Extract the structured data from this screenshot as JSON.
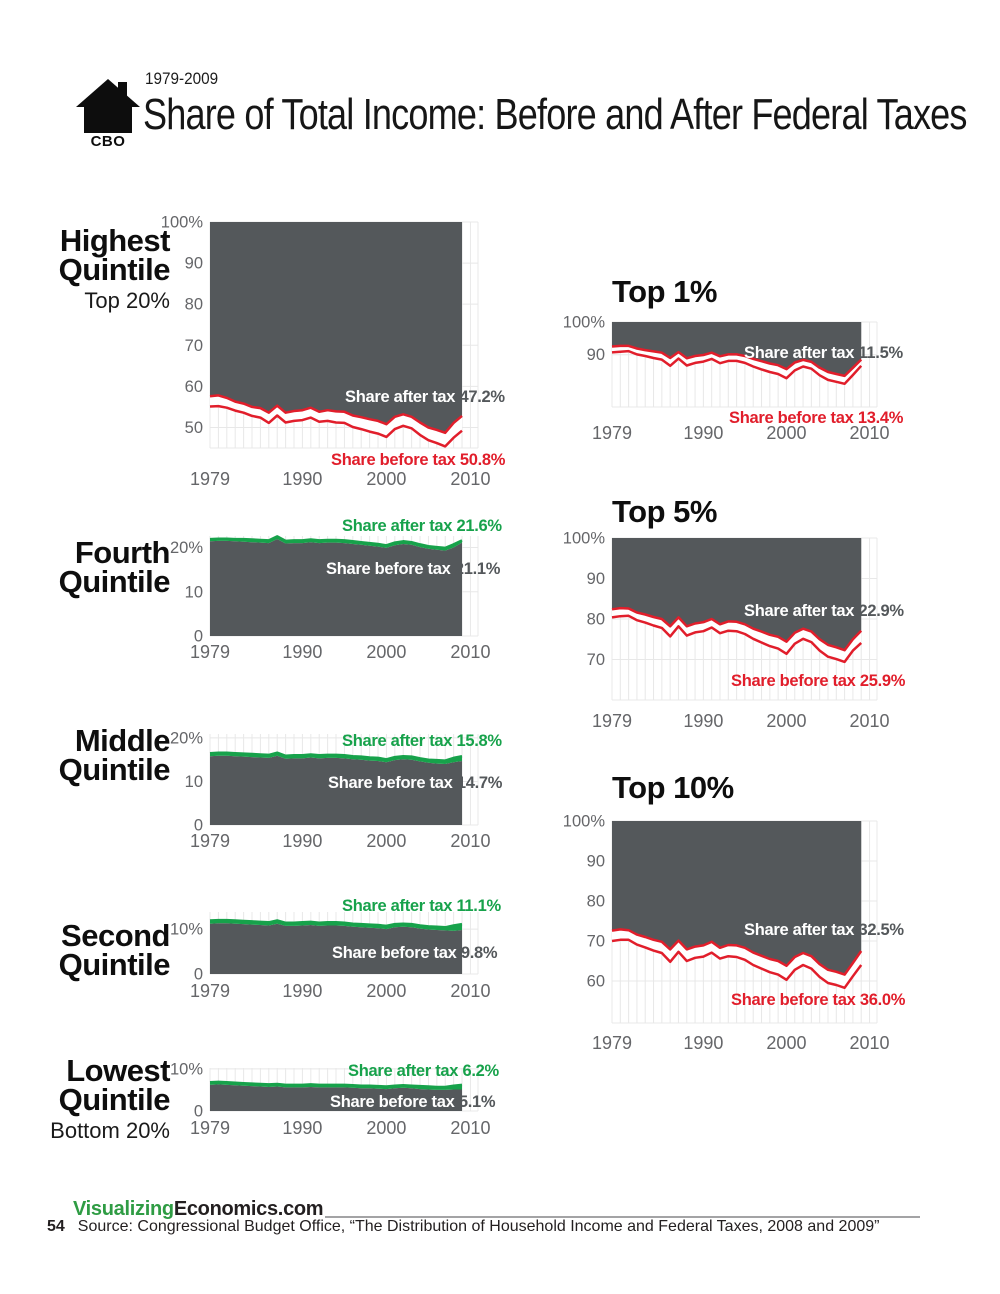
{
  "header": {
    "logo_text": "CBO",
    "period": "1979-2009",
    "title": "Share of Total Income: Before and After Federal Taxes"
  },
  "footer": {
    "brand_green": "Visualizing",
    "brand_black": "Economics.com",
    "page_number": "54",
    "source": "Source: Congressional Budget Office, “The Distribution of Household Income and Federal Taxes, 2008 and 2009”"
  },
  "colors": {
    "area_gray": "#54585b",
    "line_red": "#e11e2b",
    "line_green": "#17a24b",
    "axis_text": "#656669",
    "grid": "#e8e8e8",
    "brand_green": "#2f9c44"
  },
  "chart_data": {
    "type": "area",
    "x_years": [
      1979,
      1980,
      1981,
      1982,
      1983,
      1984,
      1985,
      1986,
      1987,
      1988,
      1989,
      1990,
      1991,
      1992,
      1993,
      1994,
      1995,
      1996,
      1997,
      1998,
      1999,
      2000,
      2001,
      2002,
      2003,
      2004,
      2005,
      2006,
      2007,
      2008,
      2009
    ],
    "x_ticks": [
      {
        "v": 1979,
        "label": "1979"
      },
      {
        "v": 1990,
        "label": "1990"
      },
      {
        "v": 2000,
        "label": "2000"
      },
      {
        "v": 2010,
        "label": "2010"
      }
    ],
    "charts": [
      {
        "id": "highest",
        "panel_title": {
          "line1": "Highest",
          "line2": "Quintile",
          "subtitle": "Top 20%"
        },
        "style": "from-top",
        "annotations": {
          "after_label": "Share after tax",
          "after_value": "47.2%",
          "before_label": "Share before tax",
          "before_value": "50.8%"
        },
        "y_ticks": [
          {
            "v": 100,
            "label": "100%"
          },
          {
            "v": 90,
            "label": "90"
          },
          {
            "v": 80,
            "label": "80"
          },
          {
            "v": 70,
            "label": "70"
          },
          {
            "v": 60,
            "label": "60"
          },
          {
            "v": 50,
            "label": "50"
          }
        ],
        "share_before_tax": [
          44.9,
          44.8,
          45.2,
          45.9,
          46.4,
          47.2,
          47.6,
          48.9,
          47.1,
          48.8,
          48.4,
          48.2,
          47.6,
          48.6,
          48.4,
          48.8,
          48.9,
          49.9,
          50.4,
          51.0,
          51.5,
          52.3,
          50.4,
          49.6,
          50.2,
          51.8,
          53.1,
          53.8,
          54.6,
          52.5,
          50.8
        ],
        "share_after_tax": [
          42.4,
          42.2,
          42.8,
          43.7,
          44.2,
          45.0,
          45.3,
          46.4,
          44.7,
          46.4,
          46.0,
          45.8,
          45.2,
          46.2,
          45.8,
          46.1,
          46.2,
          47.1,
          47.5,
          48.0,
          48.4,
          49.2,
          47.4,
          46.8,
          47.4,
          48.8,
          50.0,
          50.6,
          51.3,
          48.9,
          47.2
        ]
      },
      {
        "id": "fourth",
        "panel_title": {
          "line1": "Fourth",
          "line2": "Quintile",
          "subtitle": ""
        },
        "style": "from-bottom",
        "annotations": {
          "after_label": "Share after tax",
          "after_value": "21.6%",
          "before_label": "Share before tax",
          "before_value": "21.1%"
        },
        "y_ticks": [
          {
            "v": 20,
            "label": "20%"
          },
          {
            "v": 10,
            "label": "10"
          },
          {
            "v": 0,
            "label": "0"
          }
        ],
        "share_before_tax": [
          21.4,
          21.5,
          21.5,
          21.4,
          21.3,
          21.2,
          21.1,
          21.0,
          21.9,
          20.9,
          21.0,
          21.0,
          21.2,
          21.0,
          21.1,
          21.1,
          21.0,
          20.8,
          20.6,
          20.4,
          20.2,
          19.9,
          20.5,
          20.8,
          20.6,
          20.1,
          19.7,
          19.5,
          19.3,
          20.0,
          21.1
        ],
        "share_after_tax": [
          21.9,
          22.0,
          22.0,
          21.9,
          21.9,
          21.8,
          21.7,
          21.6,
          22.5,
          21.5,
          21.6,
          21.6,
          21.8,
          21.6,
          21.7,
          21.7,
          21.6,
          21.4,
          21.2,
          21.0,
          20.8,
          20.5,
          21.1,
          21.4,
          21.2,
          20.7,
          20.3,
          20.1,
          19.9,
          20.7,
          21.6
        ]
      },
      {
        "id": "middle",
        "panel_title": {
          "line1": "Middle",
          "line2": "Quintile",
          "subtitle": ""
        },
        "style": "from-bottom",
        "annotations": {
          "after_label": "Share after tax",
          "after_value": "15.8%",
          "before_label": "Share before tax",
          "before_value": "14.7%"
        },
        "y_ticks": [
          {
            "v": 20,
            "label": "20%"
          },
          {
            "v": 10,
            "label": "10"
          },
          {
            "v": 0,
            "label": "0"
          }
        ],
        "share_before_tax": [
          15.8,
          15.9,
          15.9,
          15.8,
          15.7,
          15.6,
          15.5,
          15.4,
          15.9,
          15.2,
          15.3,
          15.3,
          15.5,
          15.3,
          15.4,
          15.4,
          15.3,
          15.1,
          15.0,
          14.8,
          14.7,
          14.4,
          14.9,
          15.1,
          15.0,
          14.6,
          14.3,
          14.1,
          14.0,
          14.4,
          14.7
        ],
        "share_after_tax": [
          16.5,
          16.6,
          16.6,
          16.5,
          16.4,
          16.3,
          16.2,
          16.1,
          16.6,
          15.9,
          16.0,
          16.0,
          16.2,
          16.0,
          16.1,
          16.1,
          16.0,
          15.8,
          15.7,
          15.5,
          15.4,
          15.1,
          15.6,
          15.8,
          15.7,
          15.3,
          15.0,
          14.9,
          14.8,
          15.4,
          15.8
        ]
      },
      {
        "id": "second",
        "panel_title": {
          "line1": "Second",
          "line2": "Quintile",
          "subtitle": ""
        },
        "style": "from-bottom",
        "annotations": {
          "after_label": "Share after tax",
          "after_value": "11.1%",
          "before_label": "Share before tax",
          "before_value": "9.8%"
        },
        "y_ticks": [
          {
            "v": 10,
            "label": "10%"
          },
          {
            "v": 0,
            "label": "0"
          }
        ],
        "share_before_tax": [
          11.2,
          11.3,
          11.3,
          11.2,
          11.1,
          11.0,
          10.9,
          10.8,
          11.2,
          10.7,
          10.7,
          10.8,
          10.9,
          10.7,
          10.8,
          10.8,
          10.7,
          10.5,
          10.4,
          10.3,
          10.2,
          10.0,
          10.4,
          10.5,
          10.4,
          10.1,
          9.9,
          9.8,
          9.7,
          9.6,
          9.8
        ],
        "share_after_tax": [
          11.9,
          12.0,
          12.0,
          11.9,
          11.8,
          11.7,
          11.6,
          11.5,
          11.9,
          11.4,
          11.4,
          11.5,
          11.6,
          11.4,
          11.5,
          11.5,
          11.4,
          11.2,
          11.1,
          11.0,
          10.9,
          10.7,
          11.1,
          11.2,
          11.1,
          10.8,
          10.6,
          10.5,
          10.4,
          10.8,
          11.1
        ]
      },
      {
        "id": "lowest",
        "panel_title": {
          "line1": "Lowest",
          "line2": "Quintile",
          "subtitle": "Bottom 20%"
        },
        "style": "from-bottom",
        "annotations": {
          "after_label": "Share after tax",
          "after_value": "6.2%",
          "before_label": "Share before tax",
          "before_value": "5.1%"
        },
        "y_ticks": [
          {
            "v": 10,
            "label": "10%"
          },
          {
            "v": 0,
            "label": "0"
          }
        ],
        "share_before_tax": [
          6.2,
          6.3,
          6.2,
          6.1,
          6.0,
          5.9,
          5.8,
          5.7,
          5.8,
          5.6,
          5.6,
          5.6,
          5.7,
          5.6,
          5.6,
          5.6,
          5.6,
          5.5,
          5.4,
          5.4,
          5.3,
          5.2,
          5.4,
          5.5,
          5.4,
          5.2,
          5.1,
          5.0,
          5.0,
          5.1,
          5.1
        ],
        "share_after_tax": [
          6.8,
          6.9,
          6.8,
          6.7,
          6.6,
          6.5,
          6.4,
          6.3,
          6.4,
          6.2,
          6.2,
          6.2,
          6.3,
          6.2,
          6.2,
          6.2,
          6.2,
          6.1,
          6.0,
          6.0,
          5.9,
          5.8,
          6.0,
          6.1,
          6.0,
          5.9,
          5.8,
          5.7,
          5.7,
          6.0,
          6.2
        ]
      },
      {
        "id": "top1",
        "panel_title": {
          "text": "Top 1%"
        },
        "style": "from-top",
        "annotations": {
          "after_label": "Share after tax",
          "after_value": "11.5%",
          "before_label": "Share before tax",
          "before_value": "13.4%"
        },
        "y_ticks": [
          {
            "v": 100,
            "label": "100%"
          },
          {
            "v": 90,
            "label": "90"
          }
        ],
        "share_before_tax": [
          9.3,
          9.1,
          8.9,
          9.9,
          10.4,
          11.0,
          11.5,
          13.4,
          11.2,
          13.3,
          12.5,
          12.1,
          11.3,
          12.6,
          11.9,
          11.9,
          12.5,
          13.6,
          14.5,
          15.3,
          15.9,
          17.2,
          14.8,
          13.6,
          14.3,
          16.3,
          17.7,
          18.3,
          18.9,
          16.2,
          13.4
        ],
        "share_after_tax": [
          7.5,
          7.3,
          7.3,
          8.1,
          8.6,
          9.0,
          9.4,
          11.0,
          9.2,
          11.1,
          10.4,
          10.1,
          9.4,
          10.5,
          9.9,
          9.9,
          10.4,
          11.3,
          12.0,
          12.7,
          13.2,
          14.4,
          12.4,
          11.6,
          12.2,
          14.0,
          15.3,
          15.9,
          16.5,
          14.0,
          11.5
        ]
      },
      {
        "id": "top5",
        "panel_title": {
          "text": "Top 5%"
        },
        "style": "from-top",
        "annotations": {
          "after_label": "Share after tax",
          "after_value": "22.9%",
          "before_label": "Share before tax",
          "before_value": "25.9%"
        },
        "y_ticks": [
          {
            "v": 100,
            "label": "100%"
          },
          {
            "v": 90,
            "label": "90"
          },
          {
            "v": 80,
            "label": "80"
          },
          {
            "v": 70,
            "label": "70"
          }
        ],
        "share_before_tax": [
          19.6,
          19.3,
          19.2,
          20.3,
          20.9,
          21.6,
          22.2,
          24.3,
          21.8,
          24.1,
          23.3,
          23.0,
          22.1,
          23.5,
          22.9,
          23.0,
          23.7,
          24.9,
          25.8,
          26.7,
          27.3,
          28.6,
          26.1,
          24.9,
          25.7,
          27.8,
          29.3,
          29.9,
          30.6,
          27.8,
          25.9
        ],
        "share_after_tax": [
          17.6,
          17.3,
          17.4,
          18.4,
          18.9,
          19.5,
          20.0,
          21.8,
          19.6,
          21.8,
          21.1,
          20.8,
          20.0,
          21.3,
          20.6,
          20.7,
          21.3,
          22.4,
          23.1,
          23.9,
          24.4,
          25.6,
          23.4,
          22.4,
          23.1,
          25.0,
          26.4,
          27.0,
          27.7,
          25.0,
          22.9
        ]
      },
      {
        "id": "top10",
        "panel_title": {
          "text": "Top 10%"
        },
        "style": "from-top",
        "annotations": {
          "after_label": "Share after tax",
          "after_value": "32.5%",
          "before_label": "Share before tax",
          "before_value": "36.0%"
        },
        "y_ticks": [
          {
            "v": 100,
            "label": "100%"
          },
          {
            "v": 90,
            "label": "90"
          },
          {
            "v": 80,
            "label": "80"
          },
          {
            "v": 70,
            "label": "70"
          },
          {
            "v": 60,
            "label": "60"
          }
        ],
        "share_before_tax": [
          30.0,
          29.7,
          29.7,
          30.9,
          31.6,
          32.4,
          33.0,
          35.2,
          32.7,
          35.0,
          34.2,
          33.9,
          32.9,
          34.4,
          33.8,
          34.0,
          34.7,
          36.0,
          36.9,
          37.8,
          38.4,
          39.7,
          37.2,
          36.0,
          36.9,
          39.0,
          40.5,
          41.0,
          41.7,
          38.8,
          36.0
        ],
        "share_after_tax": [
          27.4,
          27.1,
          27.3,
          28.4,
          29.0,
          29.7,
          30.2,
          32.1,
          29.9,
          32.1,
          31.4,
          31.1,
          30.2,
          31.7,
          31.0,
          31.1,
          31.7,
          32.9,
          33.7,
          34.5,
          35.0,
          36.2,
          34.0,
          33.0,
          33.8,
          35.8,
          37.2,
          37.7,
          38.4,
          35.5,
          32.5
        ]
      }
    ]
  }
}
